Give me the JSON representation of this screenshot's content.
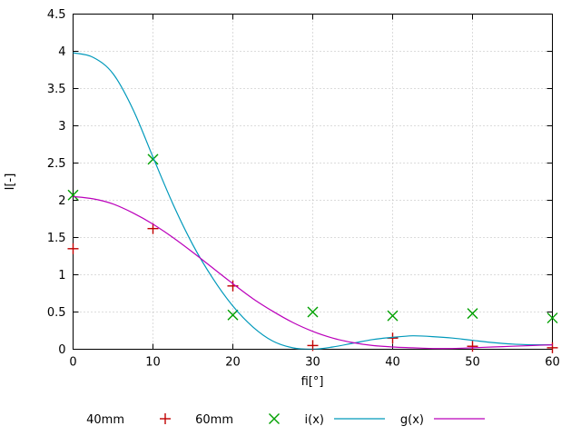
{
  "chart_data": {
    "type": "line",
    "title": "",
    "xlabel": "fi[°]",
    "ylabel": "I[-]",
    "xlim": [
      0,
      60
    ],
    "ylim": [
      0,
      4.5
    ],
    "x_ticks": [
      0,
      10,
      20,
      30,
      40,
      50,
      60
    ],
    "y_ticks": [
      0,
      0.5,
      1,
      1.5,
      2,
      2.5,
      3,
      3.5,
      4,
      4.5
    ],
    "grid": true,
    "legend_position": "bottom-center",
    "colors": {
      "background": "#ffffff",
      "border": "#000000",
      "grid": "#b8b8b8",
      "text": "#000000"
    },
    "series": [
      {
        "name": "40mm",
        "kind": "points",
        "marker": "plus",
        "color": "#c00000",
        "points": [
          [
            0,
            1.35
          ],
          [
            10,
            1.62
          ],
          [
            20,
            0.85
          ],
          [
            30,
            0.05
          ],
          [
            40,
            0.15
          ],
          [
            50,
            0.04
          ],
          [
            60,
            0.02
          ]
        ]
      },
      {
        "name": "60mm",
        "kind": "points",
        "marker": "x",
        "color": "#00a000",
        "points": [
          [
            0,
            2.07
          ],
          [
            10,
            2.55
          ],
          [
            20,
            0.46
          ],
          [
            30,
            0.5
          ],
          [
            40,
            0.45
          ],
          [
            50,
            0.48
          ],
          [
            60,
            0.42
          ]
        ]
      },
      {
        "name": "i(x)",
        "kind": "line",
        "color": "#0099bb",
        "x": [
          0,
          2.5,
          5,
          7.5,
          10,
          12.5,
          15,
          17.5,
          20,
          22.5,
          25,
          27.5,
          30,
          32.5,
          35,
          37.5,
          40,
          42.5,
          45,
          47.5,
          50,
          52.5,
          55,
          57.5,
          60
        ],
        "y": [
          3.98,
          3.92,
          3.7,
          3.22,
          2.58,
          1.95,
          1.4,
          0.95,
          0.58,
          0.3,
          0.11,
          0.02,
          0.0,
          0.03,
          0.08,
          0.13,
          0.16,
          0.18,
          0.17,
          0.15,
          0.12,
          0.09,
          0.07,
          0.06,
          0.06
        ]
      },
      {
        "name": "g(x)",
        "kind": "line",
        "color": "#bb00bb",
        "x": [
          0,
          2.5,
          5,
          7.5,
          10,
          12.5,
          15,
          17.5,
          20,
          22.5,
          25,
          27.5,
          30,
          32.5,
          35,
          37.5,
          40,
          42.5,
          45,
          47.5,
          50,
          52.5,
          55,
          57.5,
          60
        ],
        "y": [
          2.05,
          2.02,
          1.95,
          1.83,
          1.68,
          1.5,
          1.3,
          1.09,
          0.88,
          0.68,
          0.51,
          0.36,
          0.24,
          0.15,
          0.09,
          0.05,
          0.03,
          0.02,
          0.01,
          0.01,
          0.02,
          0.03,
          0.04,
          0.05,
          0.06
        ]
      }
    ]
  }
}
